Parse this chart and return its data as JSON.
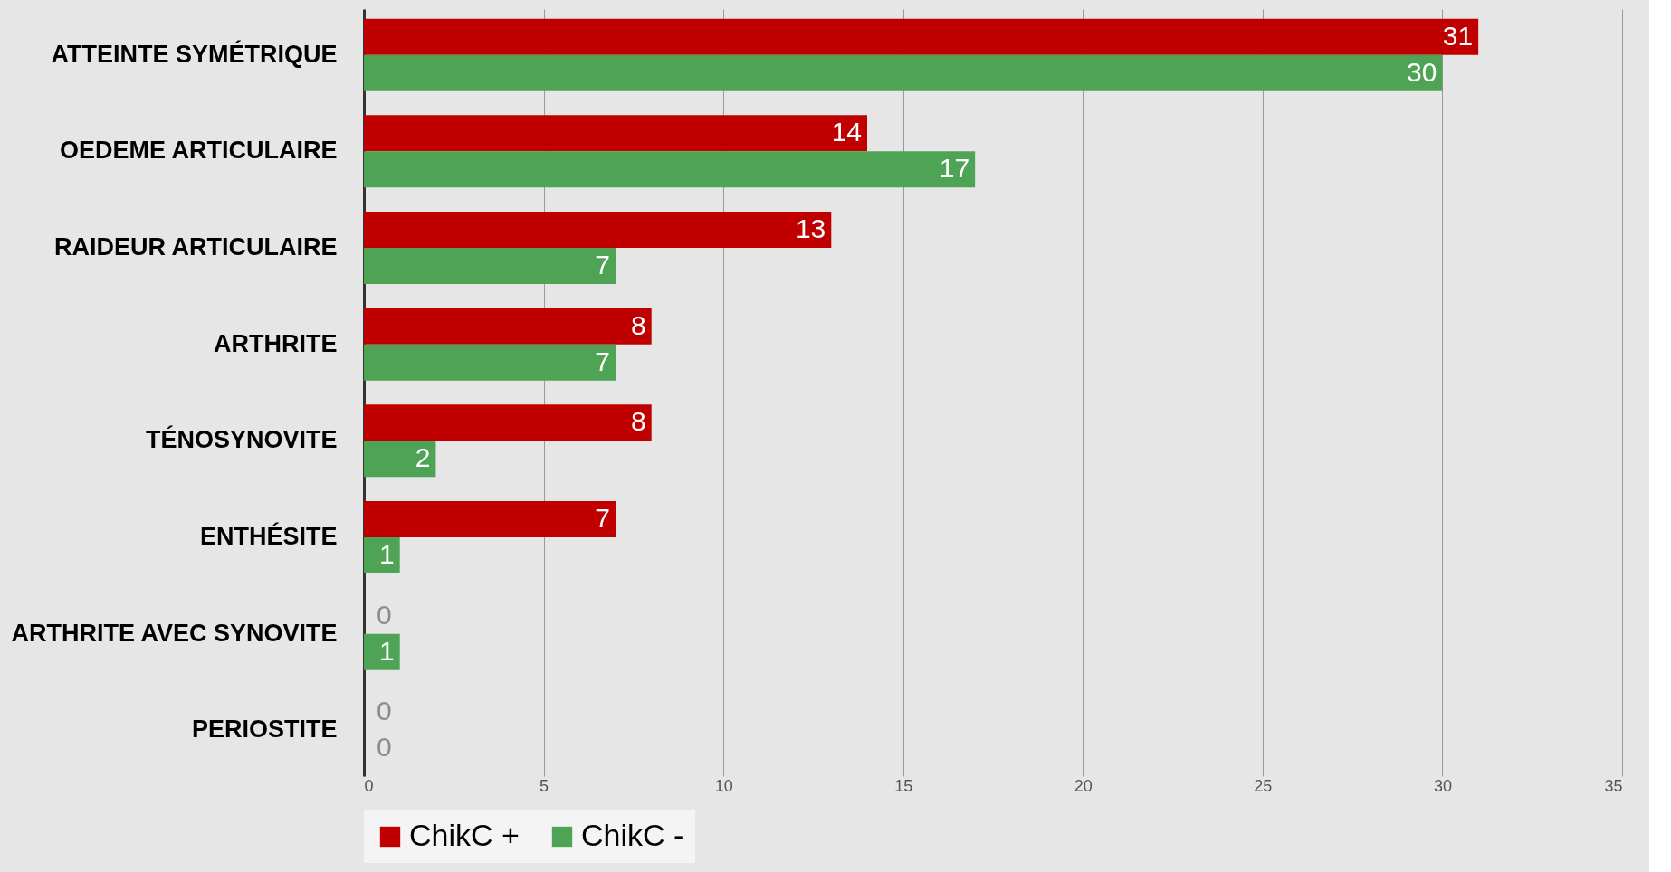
{
  "chart_data": {
    "type": "bar",
    "orientation": "horizontal",
    "categories": [
      "ATTEINTE SYMÉTRIQUE",
      "OEDEME ARTICULAIRE",
      "RAIDEUR ARTICULAIRE",
      "ARTHRITE",
      "TÉNOSYNOVITE",
      "ENTHÉSITE",
      "ARTHRITE AVEC SYNOVITE",
      "PERIOSTITE"
    ],
    "series": [
      {
        "name": "ChikC +",
        "color": "#c00000",
        "values": [
          31,
          14,
          13,
          8,
          8,
          7,
          0,
          0
        ]
      },
      {
        "name": "ChikC -",
        "color": "#4ea454",
        "values": [
          30,
          17,
          7,
          7,
          2,
          1,
          1,
          0
        ]
      }
    ],
    "xlim": [
      0,
      35
    ],
    "xticks": [
      0,
      5,
      10,
      15,
      20,
      25,
      30,
      35
    ],
    "grid": "x",
    "legend": "bottom",
    "data_labels": true
  }
}
